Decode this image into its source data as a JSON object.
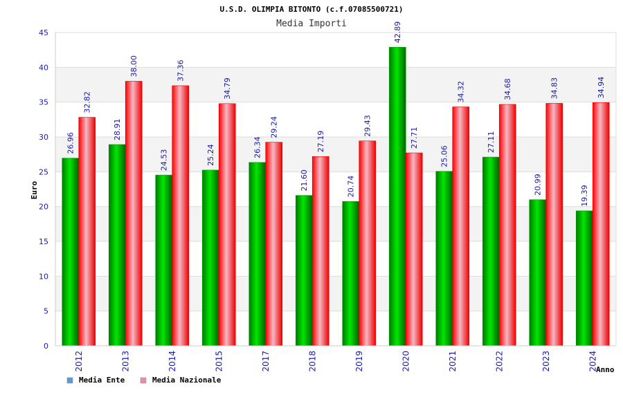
{
  "chart_data": {
    "type": "bar",
    "title": "U.S.D. OLIMPIA BITONTO (c.f.07085500721)",
    "subtitle": "Media Importi",
    "xlabel": "Anno",
    "ylabel": "Euro",
    "ylim": [
      0,
      45
    ],
    "yticks": [
      0,
      5,
      10,
      15,
      20,
      25,
      30,
      35,
      40,
      45
    ],
    "grid": true,
    "legend_position": "bottom-left",
    "categories": [
      "2012",
      "2013",
      "2014",
      "2015",
      "2017",
      "2018",
      "2019",
      "2020",
      "2021",
      "2022",
      "2023",
      "2024"
    ],
    "series": [
      {
        "name": "Media Ente",
        "color": "#00aa00",
        "legend_color": "#5b9bd5",
        "values": [
          26.96,
          28.91,
          24.53,
          25.24,
          26.34,
          21.6,
          20.74,
          42.89,
          25.06,
          27.11,
          20.99,
          19.39
        ],
        "labels": [
          "26.96",
          "28.91",
          "24.53",
          "25.24",
          "26.34",
          "21.60",
          "20.74",
          "42.89",
          "25.06",
          "27.11",
          "20.99",
          "19.39"
        ]
      },
      {
        "name": "Media Nazionale",
        "color": "#ff0000",
        "legend_color": "#e58fb0",
        "values": [
          32.82,
          38.0,
          37.36,
          34.79,
          29.24,
          27.19,
          29.43,
          27.71,
          34.32,
          34.68,
          34.83,
          34.94
        ],
        "labels": [
          "32.82",
          "38.00",
          "37.36",
          "34.79",
          "29.24",
          "27.19",
          "29.43",
          "27.71",
          "34.32",
          "34.68",
          "34.83",
          "34.94"
        ]
      }
    ]
  }
}
